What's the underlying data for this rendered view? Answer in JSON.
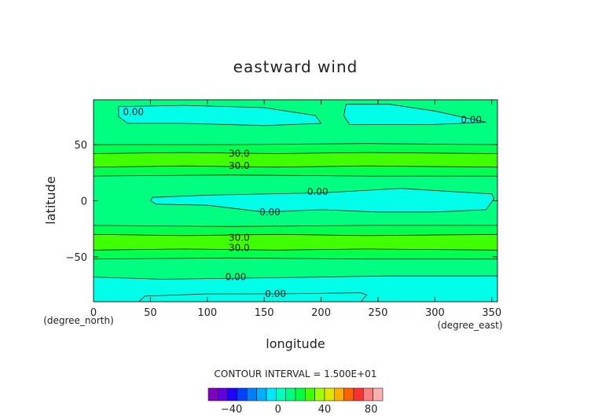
{
  "chart_data": {
    "type": "contour",
    "title": "eastward wind",
    "xlabel": "longitude",
    "ylabel": "latitude",
    "x_unit": "(degree_east)",
    "y_unit": "(degree_north)",
    "xlim": [
      0,
      355
    ],
    "ylim": [
      -90,
      90
    ],
    "x_ticks": [
      0,
      50,
      100,
      150,
      200,
      250,
      300,
      350
    ],
    "y_ticks": [
      -50,
      0,
      50
    ],
    "contour_interval_text": "CONTOUR INTERVAL = 1.500E+01",
    "contour_labels": [
      {
        "text": "0.00",
        "x": 35,
        "y": 79
      },
      {
        "text": "0.00",
        "x": 332,
        "y": 72
      },
      {
        "text": "30.0",
        "x": 128,
        "y": 42
      },
      {
        "text": "30.0",
        "x": 128,
        "y": 31
      },
      {
        "text": "0.00",
        "x": 197,
        "y": 8
      },
      {
        "text": "0.00",
        "x": 155,
        "y": -10
      },
      {
        "text": "30.0",
        "x": 128,
        "y": -33
      },
      {
        "text": "30.0",
        "x": 128,
        "y": -42
      },
      {
        "text": "0.00",
        "x": 125,
        "y": -68
      },
      {
        "text": "0.00",
        "x": 160,
        "y": -83
      }
    ],
    "colorbar": {
      "tick_labels": [
        "-40",
        "0",
        "40",
        "80"
      ],
      "tick_values": [
        -40,
        0,
        40,
        80
      ],
      "range": [
        -60,
        90
      ],
      "colors": [
        "#8000c0",
        "#6000e0",
        "#2000ff",
        "#0040ff",
        "#0080ff",
        "#00b0ff",
        "#00e8ff",
        "#00ffc0",
        "#00ff80",
        "#00ff40",
        "#40ff00",
        "#a0ff00",
        "#e0e800",
        "#ffb000",
        "#ff6000",
        "#ff3030",
        "#ff8080",
        "#ffb0b0"
      ]
    }
  }
}
